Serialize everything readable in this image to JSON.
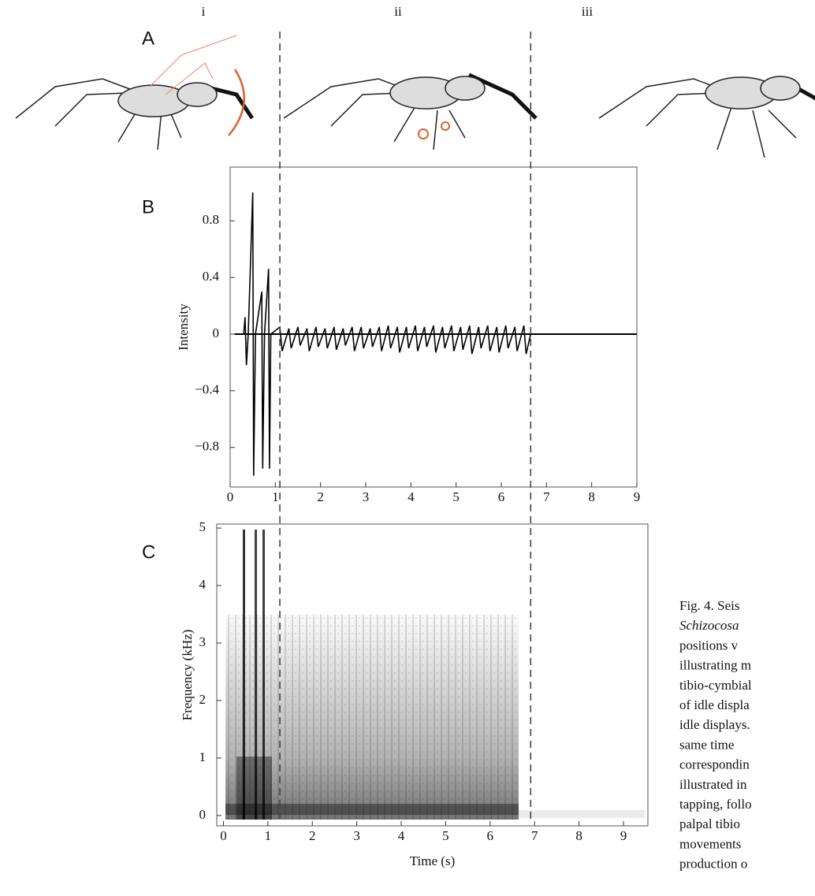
{
  "columns": [
    "i",
    "ii",
    "iii"
  ],
  "panels": [
    "A",
    "B",
    "C"
  ],
  "chart_data": [
    {
      "type": "line",
      "ylabel": "Intensity",
      "color": "#000000",
      "xlim": [
        0,
        9
      ],
      "ylim": [
        -1.08,
        1.18
      ],
      "xticks": [
        0,
        1,
        2,
        3,
        4,
        5,
        6,
        7,
        8,
        9
      ],
      "yticks": [
        {
          "value": -0.8,
          "label": "−0.8"
        },
        {
          "value": -0.4,
          "label": "−0.4"
        },
        0,
        0.4,
        0.8
      ],
      "boundaries": [
        1.1,
        6.65
      ],
      "x": [
        0.1,
        0.3,
        0.33,
        0.36,
        0.4,
        0.5,
        0.52,
        0.56,
        0.7,
        0.72,
        0.76,
        0.85,
        0.87,
        0.9,
        1.1,
        1.15,
        1.3,
        1.35,
        1.5,
        1.55,
        1.7,
        1.75,
        1.9,
        1.95,
        2.1,
        2.15,
        2.3,
        2.35,
        2.5,
        2.55,
        2.7,
        2.75,
        2.9,
        2.95,
        3.1,
        3.15,
        3.3,
        3.35,
        3.5,
        3.55,
        3.7,
        3.75,
        3.9,
        3.95,
        4.1,
        4.15,
        4.3,
        4.35,
        4.5,
        4.55,
        4.7,
        4.75,
        4.9,
        4.95,
        5.1,
        5.15,
        5.3,
        5.35,
        5.5,
        5.55,
        5.7,
        5.75,
        5.9,
        5.95,
        6.1,
        6.15,
        6.3,
        6.35,
        6.5,
        6.55,
        6.65,
        9
      ],
      "values": [
        0,
        0,
        0.12,
        -0.22,
        0,
        1.0,
        -1.0,
        0,
        0.3,
        -0.95,
        0,
        0.46,
        -0.95,
        0,
        0.05,
        -0.12,
        0.04,
        -0.1,
        0.05,
        -0.08,
        0.04,
        -0.12,
        0.05,
        -0.09,
        0.04,
        -0.1,
        0.05,
        -0.11,
        0.04,
        -0.08,
        0.05,
        -0.12,
        0.05,
        -0.1,
        0.04,
        -0.09,
        0.05,
        -0.12,
        0.06,
        -0.1,
        0.05,
        -0.13,
        0.05,
        -0.1,
        0.06,
        -0.12,
        0.05,
        -0.09,
        0.06,
        -0.13,
        0.05,
        -0.1,
        0.06,
        -0.12,
        0.05,
        -0.11,
        0.06,
        -0.14,
        0.05,
        -0.1,
        0.06,
        -0.12,
        0.05,
        -0.13,
        0.06,
        -0.1,
        0.05,
        -0.12,
        0.06,
        -0.14,
        0,
        0
      ]
    },
    {
      "type": "spectrogram",
      "xlabel": "Time (s)",
      "ylabel": "Frequency (kHz)",
      "xlim": [
        -0.15,
        9.55
      ],
      "ylim": [
        -0.18,
        5.07
      ],
      "xticks": [
        0,
        1,
        2,
        3,
        4,
        5,
        6,
        7,
        8,
        9
      ],
      "yticks": [
        0,
        1,
        2,
        3,
        4,
        5
      ]
    }
  ],
  "caption": [
    "Fig. 4.  Seis",
    "Schizocosa",
    "positions     v",
    "illustrating m",
    "tibio-cymbial",
    "of idle displa",
    "idle displays.",
    "same   time",
    "correspondin",
    "illustrated in",
    "tapping, follo",
    "palpal  tibio",
    "movements",
    "production o"
  ]
}
